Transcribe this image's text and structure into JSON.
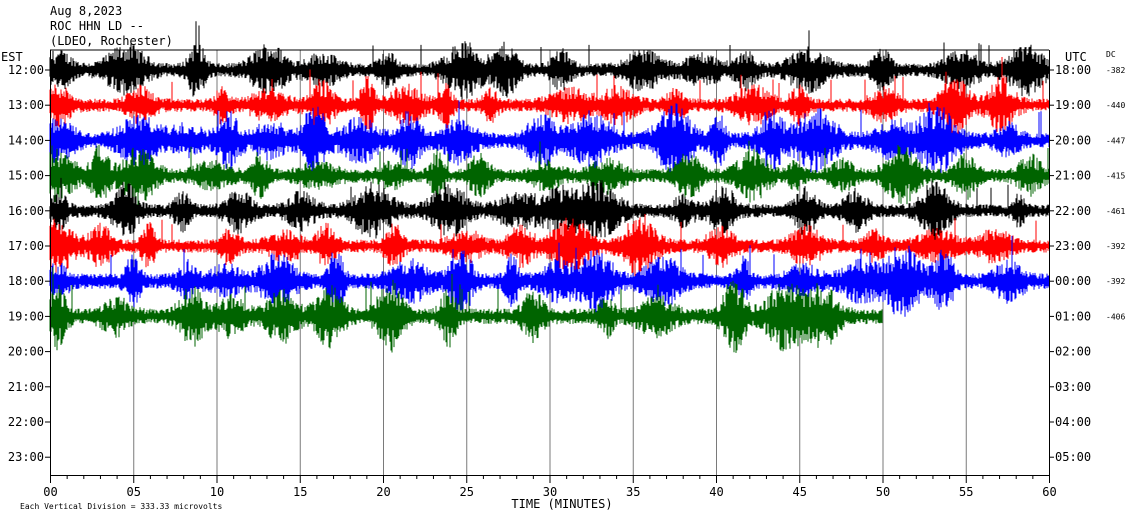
{
  "header": {
    "date": "Aug 8,2023",
    "station": "ROC HHN LD --",
    "location": "(LDEO, Rochester)"
  },
  "chart_data": {
    "type": "line",
    "title": "Aug 8,2023",
    "subtitle": "ROC HHN LD -- (LDEO, Rochester)",
    "xlabel": "TIME (MINUTES)",
    "left_axis_label": "EST",
    "right_axis_label": "UTC",
    "dc_label": "DC",
    "xlim": [
      0,
      60
    ],
    "x_ticks": [
      "00",
      "05",
      "10",
      "15",
      "20",
      "25",
      "30",
      "35",
      "40",
      "45",
      "50",
      "55",
      "60"
    ],
    "left_ticks": [
      "12:00",
      "13:00",
      "14:00",
      "15:00",
      "16:00",
      "17:00",
      "18:00",
      "19:00",
      "20:00",
      "21:00",
      "22:00",
      "23:00"
    ],
    "right_ticks": [
      "18:00",
      "19:00",
      "20:00",
      "21:00",
      "22:00",
      "23:00",
      "00:00",
      "01:00",
      "02:00",
      "03:00",
      "04:00",
      "05:00"
    ],
    "grid": "vertical lines every 5 minutes",
    "colors": [
      "#000000",
      "#ff0000",
      "#0000ff",
      "#006400"
    ],
    "series": [
      {
        "hour_est": "12:00",
        "hour_utc": "18:00",
        "dc": "-382",
        "color": "#000000",
        "duration_min": 60,
        "amplitude": 12
      },
      {
        "hour_est": "13:00",
        "hour_utc": "19:00",
        "dc": "-440",
        "color": "#ff0000",
        "duration_min": 60,
        "amplitude": 12
      },
      {
        "hour_est": "14:00",
        "hour_utc": "20:00",
        "dc": "-447",
        "color": "#0000ff",
        "duration_min": 60,
        "amplitude": 14
      },
      {
        "hour_est": "15:00",
        "hour_utc": "21:00",
        "dc": "-415",
        "color": "#006400",
        "duration_min": 60,
        "amplitude": 12
      },
      {
        "hour_est": "16:00",
        "hour_utc": "22:00",
        "dc": "-461",
        "color": "#000000",
        "duration_min": 60,
        "amplitude": 12
      },
      {
        "hour_est": "17:00",
        "hour_utc": "23:00",
        "dc": "-392",
        "color": "#ff0000",
        "duration_min": 60,
        "amplitude": 12
      },
      {
        "hour_est": "18:00",
        "hour_utc": "00:00",
        "dc": "-392",
        "color": "#0000ff",
        "duration_min": 60,
        "amplitude": 14
      },
      {
        "hour_est": "19:00",
        "hour_utc": "01:00",
        "dc": "-406",
        "color": "#006400",
        "duration_min": 50,
        "amplitude": 14
      }
    ],
    "footer_note": "Each Vertical Division =  333.33 microvolts"
  }
}
